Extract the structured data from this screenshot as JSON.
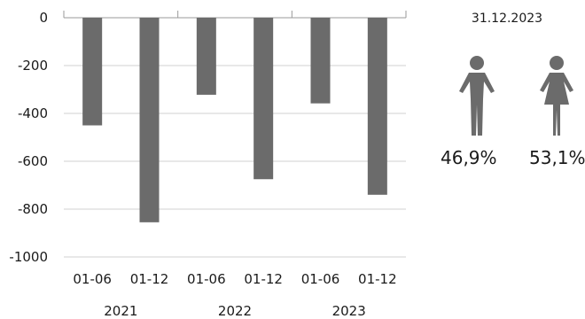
{
  "chart_data": {
    "type": "bar",
    "groups": [
      "2021",
      "2022",
      "2023"
    ],
    "categories": [
      "01-06",
      "01-12",
      "01-06",
      "01-12",
      "01-06",
      "01-12"
    ],
    "values": [
      -450,
      -855,
      -322,
      -675,
      -358,
      -740
    ],
    "ylim": [
      -1000,
      0
    ],
    "yticks": [
      0,
      -200,
      -400,
      -600,
      -800,
      -1000
    ],
    "bar_color": "#6b6b6b",
    "grid": true
  },
  "panel": {
    "date": "31.12.2023",
    "male": {
      "icon": "male-person-icon",
      "share": "46,9%"
    },
    "female": {
      "icon": "female-person-icon",
      "share": "53,1%"
    },
    "icon_color": "#6b6b6b"
  }
}
